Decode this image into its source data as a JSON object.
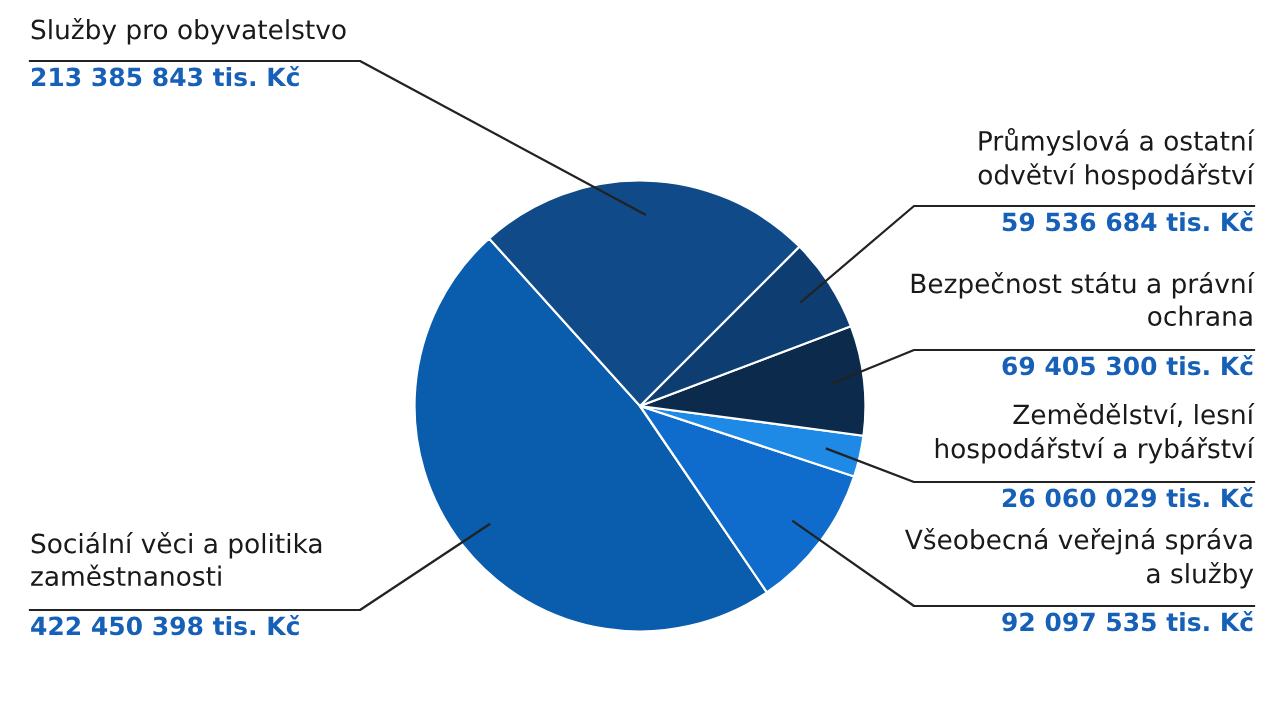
{
  "chart_data": {
    "type": "pie",
    "categories": [
      "Sociální věci a politika\nzaměstnanosti",
      "Všeobecná veřejná správa\na služby",
      "Zemědělství, lesní\nhospodářství a rybářství",
      "Bezpečnost státu a právní\nochrana",
      "Průmyslová a ostatní\nodvětví hospodářství",
      "Služby pro obyvatelstvo"
    ],
    "values": [
      422450398,
      92097535,
      26060029,
      69405300,
      59536684,
      213385843
    ],
    "value_labels": [
      "422 450 398 tis. Kč",
      "92 097 535 tis. Kč",
      "26 060 029 tis. Kč",
      "69 405 300 tis. Kč",
      "59 536 684 tis. Kč",
      "213 385 843 tis. Kč"
    ],
    "colors": [
      "#0a5cad",
      "#0f6ccc",
      "#1e8ae6",
      "#0b2a4c",
      "#0e3e71",
      "#104a88"
    ],
    "legend": false
  }
}
